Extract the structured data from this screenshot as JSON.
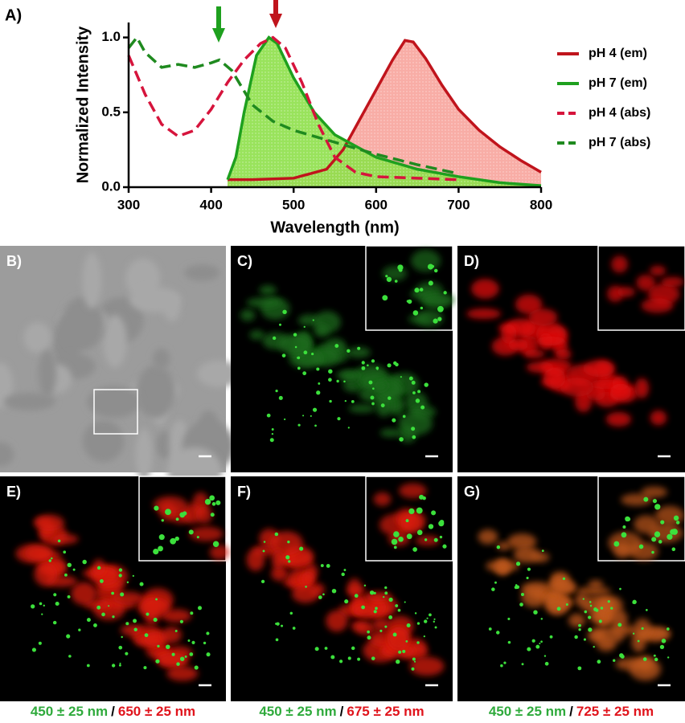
{
  "chart_data": {
    "type": "line",
    "panel_label": "A)",
    "x_label": "Wavelength (nm)",
    "y_label": "Normalized Intensity",
    "xlim": [
      300,
      800
    ],
    "xticks": [
      300,
      400,
      500,
      600,
      700,
      800
    ],
    "ylim": [
      0,
      1.1
    ],
    "yticks": [
      {
        "value": 0,
        "label": "0.0"
      },
      {
        "value": 0.5,
        "label": "0.5"
      },
      {
        "value": 1,
        "label": "1.0"
      }
    ],
    "series": [
      {
        "name": "pH 4 (em)",
        "color": "#c0141c",
        "dash": false,
        "fill": "#f7a49c",
        "x": [
          420,
          450,
          500,
          540,
          560,
          580,
          600,
          620,
          635,
          645,
          660,
          680,
          700,
          725,
          750,
          775,
          800
        ],
        "values": [
          0.05,
          0.05,
          0.06,
          0.12,
          0.25,
          0.45,
          0.65,
          0.85,
          0.98,
          0.97,
          0.86,
          0.68,
          0.52,
          0.38,
          0.27,
          0.18,
          0.1
        ]
      },
      {
        "name": "pH 7 (em)",
        "color": "#1ea01e",
        "dash": false,
        "fill": "#8ee04a",
        "x": [
          420,
          430,
          440,
          455,
          470,
          480,
          500,
          525,
          550,
          600,
          650,
          700,
          750,
          800
        ],
        "values": [
          0.05,
          0.2,
          0.5,
          0.88,
          1.0,
          0.96,
          0.73,
          0.5,
          0.35,
          0.2,
          0.12,
          0.07,
          0.03,
          0.01
        ]
      },
      {
        "name": "pH 4 (abs)",
        "color": "#d6143c",
        "dash": true,
        "fill": null,
        "x": [
          300,
          320,
          340,
          360,
          380,
          400,
          420,
          440,
          460,
          475,
          490,
          510,
          530,
          550,
          575,
          600,
          650,
          700
        ],
        "values": [
          0.88,
          0.62,
          0.42,
          0.34,
          0.38,
          0.52,
          0.7,
          0.85,
          0.96,
          1.0,
          0.93,
          0.7,
          0.42,
          0.2,
          0.1,
          0.07,
          0.06,
          0.05
        ]
      },
      {
        "name": "pH 7 (abs)",
        "color": "#1f8a1f",
        "dash": true,
        "fill": null,
        "x": [
          300,
          310,
          320,
          340,
          360,
          380,
          400,
          410,
          425,
          450,
          475,
          500,
          550,
          600,
          650,
          700
        ],
        "values": [
          0.93,
          1.0,
          0.9,
          0.8,
          0.82,
          0.8,
          0.83,
          0.85,
          0.78,
          0.55,
          0.44,
          0.38,
          0.3,
          0.22,
          0.15,
          0.09
        ]
      }
    ]
  },
  "images": [
    {
      "label": "B)",
      "caption": null
    },
    {
      "label": "C)",
      "caption": null
    },
    {
      "label": "D)",
      "caption": null
    },
    {
      "label": "E)",
      "caption": [
        "450 ± 25 nm",
        "/",
        "650 ± 25 nm"
      ]
    },
    {
      "label": "F)",
      "caption": [
        "450 ± 25 nm",
        "/",
        "675 ± 25 nm"
      ]
    },
    {
      "label": "G)",
      "caption": [
        "450 ± 25 nm",
        "/",
        "725 ± 25 nm"
      ]
    }
  ]
}
